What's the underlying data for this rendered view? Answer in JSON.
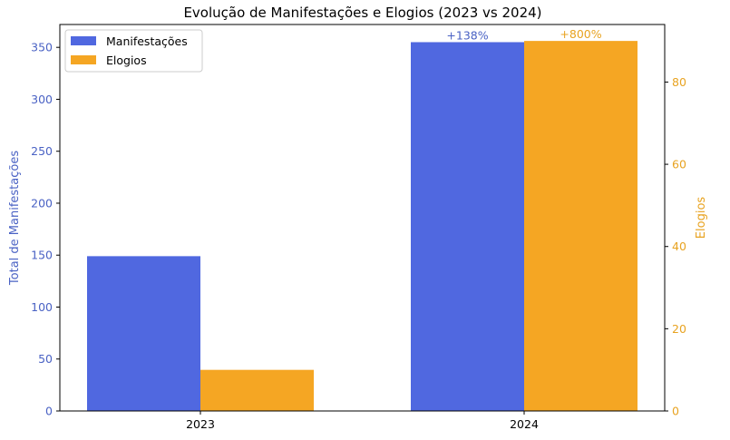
{
  "chart_data": {
    "type": "bar",
    "title": "Evolução de Manifestações e Elogios (2023 vs 2024)",
    "categories": [
      "2023",
      "2024"
    ],
    "series": [
      {
        "name": "Manifestações",
        "axis": "left",
        "color": "#5068e0",
        "values": [
          149,
          355
        ],
        "labels": [
          "",
          "+138%"
        ]
      },
      {
        "name": "Elogios",
        "axis": "right",
        "color": "#f5a623",
        "values": [
          10,
          90
        ],
        "labels": [
          "",
          "+800%"
        ]
      }
    ],
    "ylabel": "Total de Manifestações",
    "ylabel_color": "#4a62c4",
    "ylim": [
      0,
      372
    ],
    "yticks": [
      0,
      50,
      100,
      150,
      200,
      250,
      300,
      350
    ],
    "y2label": "Elogios",
    "y2label_color": "#e8a321",
    "y2lim": [
      0,
      94
    ],
    "y2ticks": [
      0,
      20,
      40,
      60,
      80
    ],
    "grid": false,
    "legend_position": "top-left"
  }
}
